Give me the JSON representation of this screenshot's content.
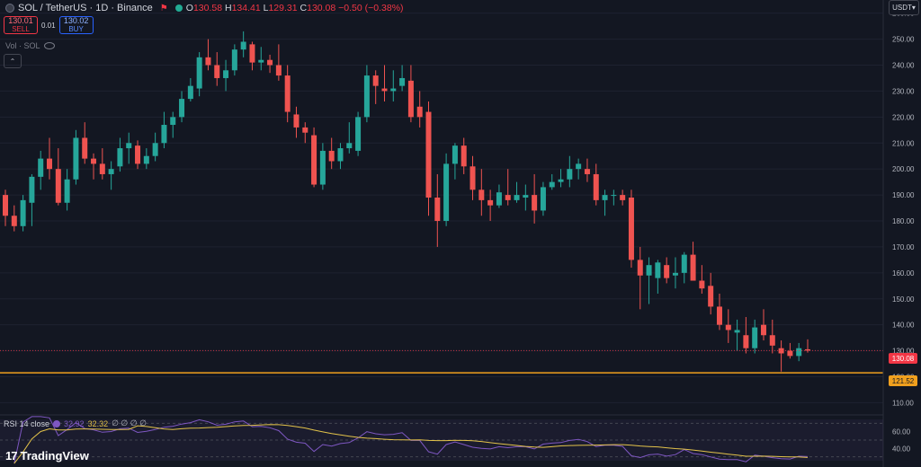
{
  "legend": {
    "title": "SOL / TetherUS · 1D · Binance",
    "ohlc": [
      {
        "k": "O",
        "v": "130.58"
      },
      {
        "k": "H",
        "v": "134.41"
      },
      {
        "k": "L",
        "v": "129.31"
      },
      {
        "k": "C",
        "v": "130.08"
      },
      {
        "k": "",
        "v": "−0.50 (−0.38%)"
      }
    ]
  },
  "trade": {
    "sell_price": "130.01",
    "sell_label": "SELL",
    "spread": "0.01",
    "buy_price": "130.02",
    "buy_label": "BUY"
  },
  "volume_label": "Vol · SOL",
  "currency": "USDT",
  "price_tags": {
    "last": "130.08",
    "line": "121.52"
  },
  "rsi": {
    "name": "RSI 14 close",
    "value": "32.92",
    "ma": "32.32",
    "extras": "∅ ∅ ∅ ∅"
  },
  "rsi_axis": [
    "60.00",
    "40.00"
  ],
  "brand": "TradingView",
  "colors": {
    "up": "#26a69a",
    "down": "#ef5350",
    "bg": "#131722",
    "line": "#f0a01e",
    "rsi": "#7e57c2",
    "rsi_ma": "#e3c34a"
  },
  "chart_data": {
    "type": "candlestick",
    "y_ticks": [
      "260.00",
      "250.00",
      "240.00",
      "230.00",
      "220.00",
      "210.00",
      "200.00",
      "190.00",
      "180.00",
      "170.00",
      "160.00",
      "150.00",
      "140.00",
      "130.00",
      "120.00",
      "110.00"
    ],
    "ylim": [
      106,
      263
    ],
    "horizontal_line": 121.52,
    "last_price": 130.08,
    "candles": [
      [
        190,
        192,
        178,
        182
      ],
      [
        182,
        186,
        176,
        178
      ],
      [
        178,
        190,
        176,
        188
      ],
      [
        187,
        198,
        178,
        197
      ],
      [
        197,
        207,
        192,
        204
      ],
      [
        204,
        212,
        196,
        200
      ],
      [
        200,
        208,
        186,
        187
      ],
      [
        187,
        200,
        184,
        196
      ],
      [
        196,
        215,
        194,
        212
      ],
      [
        212,
        218,
        202,
        204
      ],
      [
        204,
        206,
        196,
        202
      ],
      [
        202,
        208,
        196,
        198
      ],
      [
        198,
        203,
        192,
        200
      ],
      [
        201,
        212,
        199,
        208
      ],
      [
        208,
        214,
        202,
        210
      ],
      [
        209,
        211,
        200,
        202
      ],
      [
        202,
        208,
        200,
        205
      ],
      [
        205,
        214,
        203,
        210
      ],
      [
        210,
        222,
        208,
        217
      ],
      [
        217,
        222,
        212,
        220
      ],
      [
        220,
        230,
        218,
        227
      ],
      [
        227,
        235,
        226,
        232
      ],
      [
        231,
        245,
        228,
        243
      ],
      [
        243,
        250,
        238,
        240
      ],
      [
        240,
        245,
        232,
        235
      ],
      [
        235,
        242,
        230,
        238
      ],
      [
        238,
        248,
        236,
        246
      ],
      [
        246,
        253,
        243,
        249
      ],
      [
        248,
        249,
        238,
        241
      ],
      [
        241,
        247,
        238,
        242
      ],
      [
        242,
        244,
        237,
        240
      ],
      [
        240,
        248,
        234,
        236
      ],
      [
        236,
        240,
        218,
        222
      ],
      [
        221,
        224,
        212,
        216
      ],
      [
        216,
        218,
        210,
        214
      ],
      [
        213,
        216,
        193,
        194
      ],
      [
        194,
        210,
        192,
        207
      ],
      [
        207,
        212,
        200,
        203
      ],
      [
        203,
        210,
        200,
        208
      ],
      [
        208,
        218,
        206,
        210
      ],
      [
        207,
        222,
        205,
        220
      ],
      [
        220,
        240,
        218,
        236
      ],
      [
        236,
        238,
        225,
        232
      ],
      [
        231,
        240,
        226,
        230
      ],
      [
        230,
        238,
        226,
        231
      ],
      [
        232,
        240,
        230,
        235
      ],
      [
        234,
        240,
        218,
        220
      ],
      [
        224,
        230,
        216,
        220
      ],
      [
        222,
        226,
        182,
        189
      ],
      [
        189,
        198,
        170,
        180
      ],
      [
        180,
        206,
        178,
        202
      ],
      [
        202,
        210,
        196,
        209
      ],
      [
        209,
        212,
        198,
        201
      ],
      [
        201,
        205,
        188,
        192
      ],
      [
        192,
        200,
        182,
        188
      ],
      [
        188,
        192,
        180,
        186
      ],
      [
        186,
        194,
        185,
        191
      ],
      [
        190,
        200,
        186,
        188
      ],
      [
        188,
        195,
        187,
        190
      ],
      [
        189,
        194,
        184,
        190
      ],
      [
        190,
        198,
        179,
        184
      ],
      [
        184,
        195,
        182,
        193
      ],
      [
        193,
        198,
        192,
        195
      ],
      [
        195,
        200,
        193,
        196
      ],
      [
        196,
        205,
        193,
        200
      ],
      [
        200,
        204,
        196,
        202
      ],
      [
        200,
        204,
        195,
        198
      ],
      [
        198,
        202,
        186,
        188
      ],
      [
        188,
        192,
        182,
        190
      ],
      [
        190,
        192,
        186,
        190
      ],
      [
        190,
        192,
        186,
        188
      ],
      [
        189,
        192,
        162,
        165
      ],
      [
        165,
        170,
        146,
        159
      ],
      [
        159,
        166,
        148,
        163
      ],
      [
        158,
        165,
        152,
        164
      ],
      [
        163,
        166,
        156,
        158
      ],
      [
        159,
        166,
        154,
        160
      ],
      [
        160,
        168,
        156,
        167
      ],
      [
        167,
        172,
        158,
        157
      ],
      [
        157,
        163,
        152,
        154
      ],
      [
        155,
        160,
        144,
        147
      ],
      [
        147,
        152,
        138,
        140
      ],
      [
        140,
        146,
        133,
        138
      ],
      [
        137,
        142,
        130,
        138
      ],
      [
        136,
        143,
        129,
        131
      ],
      [
        131,
        142,
        129,
        139
      ],
      [
        140,
        146,
        134,
        136
      ],
      [
        136,
        142,
        129,
        132
      ],
      [
        131,
        134,
        122,
        129
      ],
      [
        130,
        133,
        127,
        128
      ],
      [
        128,
        133,
        126,
        131
      ],
      [
        130.58,
        134.41,
        129.31,
        130.08
      ]
    ]
  }
}
